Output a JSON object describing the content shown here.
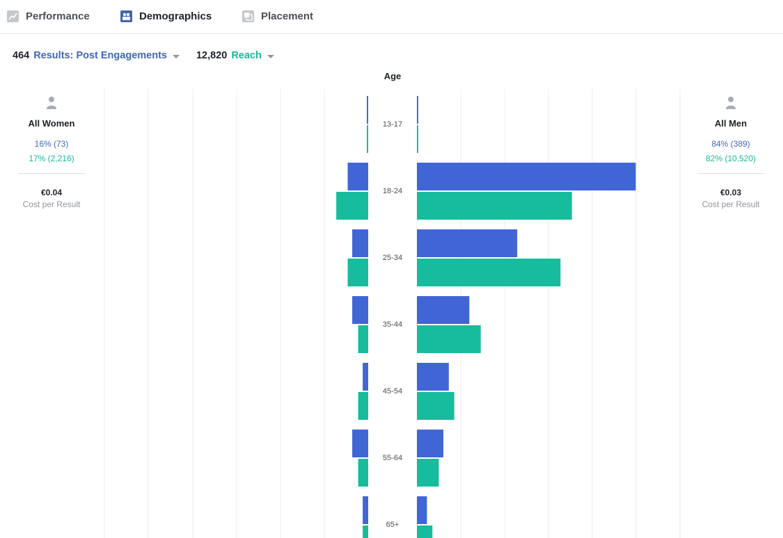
{
  "tabs": [
    {
      "label": "Performance",
      "icon": "line-chart-icon",
      "active": false
    },
    {
      "label": "Demographics",
      "icon": "people-icon",
      "active": true
    },
    {
      "label": "Placement",
      "icon": "placement-icon",
      "active": false
    }
  ],
  "metrics": {
    "primary": {
      "value": "464",
      "label": "Results: Post Engagements"
    },
    "secondary": {
      "value": "12,820",
      "label": "Reach"
    }
  },
  "women": {
    "title": "All Women",
    "results": "16% (73)",
    "reach": "17% (2,216)",
    "cost": "€0.04",
    "cost_label": "Cost per Result"
  },
  "men": {
    "title": "All Men",
    "results": "84% (389)",
    "reach": "82% (10,520)",
    "cost": "€0.03",
    "cost_label": "Cost per Result"
  },
  "colors": {
    "results": "#4066d6",
    "reach": "#17bc9c",
    "grid": "#ececec"
  },
  "chart_data": {
    "type": "bar",
    "orientation": "horizontal-butterfly",
    "axis_title": "Age",
    "categories": [
      "13-17",
      "18-24",
      "25-34",
      "35-44",
      "45-54",
      "55-64",
      "65+"
    ],
    "series": [
      {
        "name": "Results: Post Engagements",
        "group": "women",
        "color": "#4066d6",
        "values": [
          0.3,
          4.5,
          3.5,
          3.5,
          1.2,
          3.5,
          1.2
        ]
      },
      {
        "name": "Reach",
        "group": "women",
        "color": "#17bc9c",
        "values": [
          0.3,
          7.0,
          4.5,
          2.2,
          2.2,
          2.2,
          1.2
        ]
      },
      {
        "name": "Results: Post Engagements",
        "group": "men",
        "color": "#4066d6",
        "values": [
          0.3,
          48.0,
          22.0,
          11.5,
          7.0,
          5.8,
          2.2
        ]
      },
      {
        "name": "Reach",
        "group": "men",
        "color": "#17bc9c",
        "values": [
          0.3,
          34.0,
          31.5,
          14.0,
          8.2,
          4.8,
          3.4
        ]
      }
    ],
    "xlim": [
      0,
      60
    ]
  }
}
